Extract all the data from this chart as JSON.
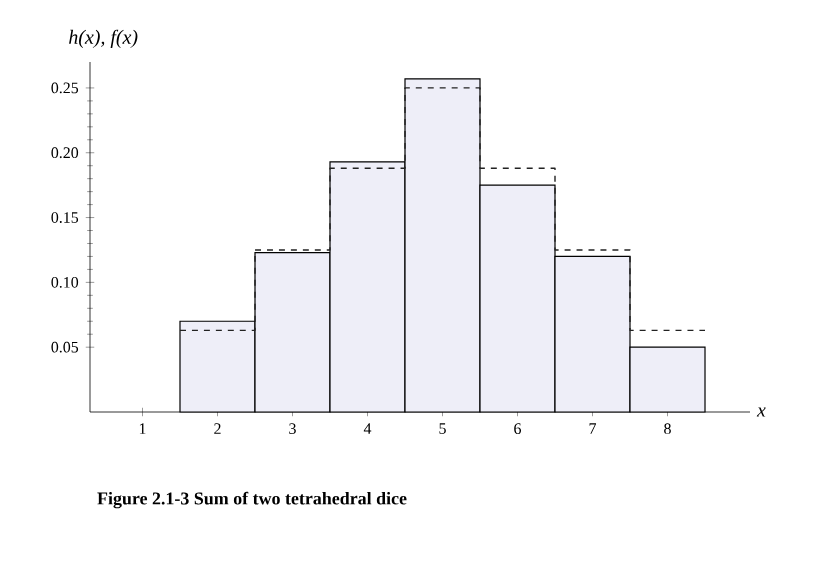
{
  "chart_data": {
    "type": "histogram",
    "ylabel": "h(x), f(x)",
    "xlabel": "x",
    "annotations": [
      "Figure 2.1-3  Sum of two tetrahedral dice"
    ],
    "series": [
      {
        "bins": [
          1.5,
          2.5,
          3.5,
          4.5,
          5.5,
          6.5,
          7.5,
          8.5
        ],
        "values": [
          0.07,
          0.123,
          0.193,
          0.257,
          0.175,
          0.12,
          0.05
        ],
        "color": "#eeeef8"
      },
      {
        "type": "step",
        "x": [
          1.5,
          2.5,
          3.5,
          4.5,
          5.5,
          6.5,
          7.5,
          8.5
        ],
        "values": [
          0.063,
          0.125,
          0.188,
          0.25,
          0.188,
          0.125,
          0.063,
          0.063
        ],
        "color": "#222222",
        "line_style": "dashed"
      }
    ],
    "xlim": [
      0.3,
      9.1
    ],
    "ylim": [
      0,
      0.27
    ],
    "xticks": [
      1,
      2,
      3,
      4,
      5,
      6,
      7,
      8
    ],
    "yticks": [
      {
        "value": 0.05,
        "label": "0.05"
      },
      {
        "value": 0.1,
        "label": "0.10"
      },
      {
        "value": 0.15,
        "label": "0.15"
      },
      {
        "value": 0.2,
        "label": "0.20"
      },
      {
        "value": 0.25,
        "label": "0.25"
      }
    ],
    "grid": false
  }
}
